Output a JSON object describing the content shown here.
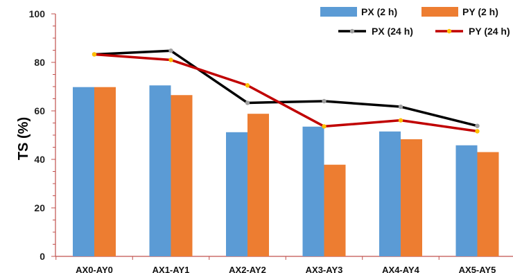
{
  "chart_data": {
    "type": "bar",
    "ylabel": "TS (%)",
    "ylim": [
      0,
      100
    ],
    "yticks": [
      0,
      20,
      40,
      60,
      80,
      100
    ],
    "grid": false,
    "legend_position": "top-right",
    "categories": [
      "AX0-AY0",
      "AX1-AY1",
      "AX2-AY2",
      "AX3-AY3",
      "AX4-AY4",
      "AX5-AY5"
    ],
    "bar_series": [
      {
        "name": "PX (2 h)",
        "color": "#5b9bd5",
        "values": [
          69.8,
          70.5,
          51.2,
          53.5,
          51.5,
          45.8
        ]
      },
      {
        "name": "PY (2 h)",
        "color": "#ed7d31",
        "values": [
          69.8,
          66.5,
          58.8,
          37.8,
          48.3,
          43.0
        ]
      }
    ],
    "line_series": [
      {
        "name": "PX (24 h)",
        "color": "#000000",
        "marker_color": "#a0a0a0",
        "values": [
          83.3,
          84.8,
          63.3,
          64.0,
          61.7,
          53.8
        ]
      },
      {
        "name": "PY (24 h)",
        "color": "#c00000",
        "marker_color": "#ffc000",
        "values": [
          83.3,
          81.0,
          70.5,
          53.6,
          56.1,
          51.6
        ]
      }
    ]
  }
}
